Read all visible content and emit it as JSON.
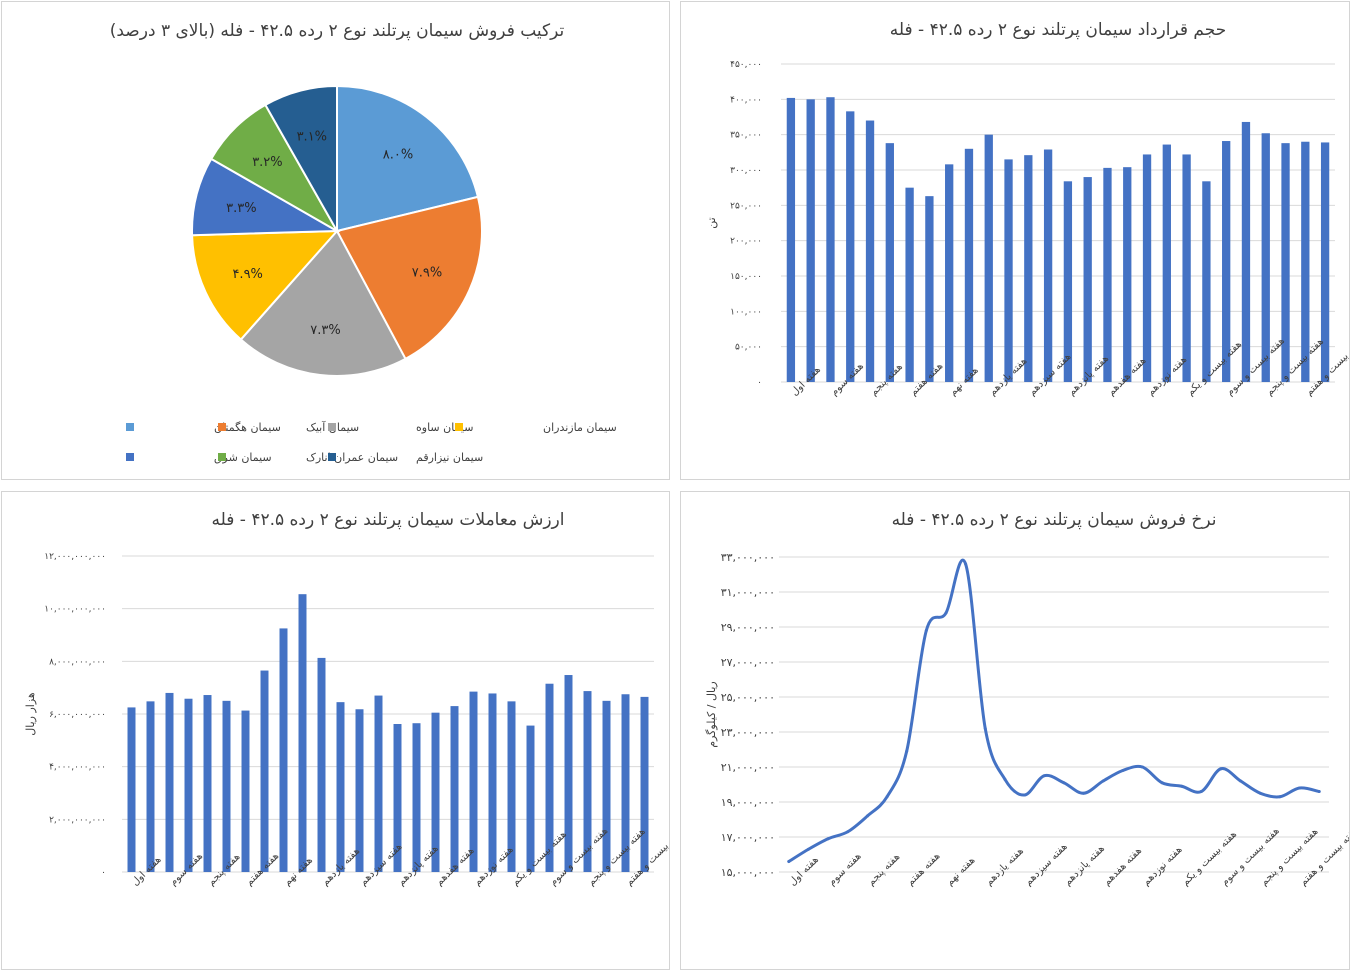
{
  "chart_data": [
    {
      "id": "pie",
      "type": "pie",
      "title": "ترکیب فروش سیمان پرتلند نوع ۲ رده ۴۲.۵ - فله (بالای ۳ درصد)",
      "slices": [
        {
          "name": "سیمان هگمتان",
          "value": 8.0,
          "label": "۸.۰%",
          "color": "#5B9BD5"
        },
        {
          "name": "سیمان آبیک",
          "value": 7.9,
          "label": "۷.۹%",
          "color": "#ED7D31"
        },
        {
          "name": "سیمان ساوه",
          "value": 7.3,
          "label": "۷.۳%",
          "color": "#A5A5A5"
        },
        {
          "name": "سیمان مازندران",
          "value": 4.9,
          "label": "۴.۹%",
          "color": "#FFC000"
        },
        {
          "name": "سیمان شرق",
          "value": 3.3,
          "label": "۳.۳%",
          "color": "#4472C4"
        },
        {
          "name": "سیمان عمران انارک",
          "value": 3.2,
          "label": "۳.۲%",
          "color": "#70AD47"
        },
        {
          "name": "سیمان نیزارقم",
          "value": 3.1,
          "label": "۳.۱%",
          "color": "#255E91"
        }
      ],
      "legend_position": "bottom"
    },
    {
      "id": "volume",
      "type": "bar",
      "title": "حجم قرارداد سیمان پرتلند نوع ۲ رده ۴۲.۵ - فله",
      "ylabel": "تن",
      "ylim": [
        0,
        450000
      ],
      "yticks": [
        0,
        50000,
        100000,
        150000,
        200000,
        250000,
        300000,
        350000,
        400000,
        450000
      ],
      "ytick_labels": [
        "۰",
        "۵۰,۰۰۰",
        "۱۰۰,۰۰۰",
        "۱۵۰,۰۰۰",
        "۲۰۰,۰۰۰",
        "۲۵۰,۰۰۰",
        "۳۰۰,۰۰۰",
        "۳۵۰,۰۰۰",
        "۴۰۰,۰۰۰",
        "۴۵۰,۰۰۰"
      ],
      "categories_shown": [
        "هفته اول",
        "هفته سوم",
        "هفته پنجم",
        "هفته هفتم",
        "هفته نهم",
        "هفته یازدهم",
        "هفته سیزدهم",
        "هفته پانزدهم",
        "هفته هفدهم",
        "هفته نوزدهم",
        "هفته بیست و یکم",
        "هفته بیست و سوم",
        "هفته بیست و پنجم",
        "هفته بیست و هفتم"
      ],
      "values": [
        402000,
        400000,
        403000,
        383000,
        370000,
        338000,
        275000,
        263000,
        308000,
        330000,
        350000,
        315000,
        321000,
        329000,
        284000,
        290000,
        303000,
        304000,
        322000,
        336000,
        322000,
        284000,
        341000,
        368000,
        352000,
        338000,
        340000,
        339000
      ],
      "color": "#4472C4"
    },
    {
      "id": "value",
      "type": "bar",
      "title": "ارزش معاملات سیمان پرتلند نوع ۲ رده ۴۲.۵ - فله",
      "ylabel": "هزار ریال",
      "ylim": [
        0,
        12000000000
      ],
      "yticks": [
        0,
        2000000000,
        4000000000,
        6000000000,
        8000000000,
        10000000000,
        12000000000
      ],
      "ytick_labels": [
        "۰",
        "۲,۰۰۰,۰۰۰,۰۰۰",
        "۴,۰۰۰,۰۰۰,۰۰۰",
        "۶,۰۰۰,۰۰۰,۰۰۰",
        "۸,۰۰۰,۰۰۰,۰۰۰",
        "۱۰,۰۰۰,۰۰۰,۰۰۰",
        "۱۲,۰۰۰,۰۰۰,۰۰۰"
      ],
      "categories_shown": [
        "هفته اول",
        "هفته سوم",
        "هفته پنجم",
        "هفته هفتم",
        "هفته نهم",
        "هفته یازدهم",
        "هفته سیزدهم",
        "هفته پانزدهم",
        "هفته هفدهم",
        "هفته نوزدهم",
        "هفته بیست و یکم",
        "هفته بیست و سوم",
        "هفته بیست و پنجم",
        "هفته بیست و هفتم"
      ],
      "values": [
        6250000000,
        6480000000,
        6800000000,
        6580000000,
        6720000000,
        6500000000,
        6130000000,
        7650000000,
        9250000000,
        10550000000,
        8130000000,
        6450000000,
        6180000000,
        6700000000,
        5620000000,
        5650000000,
        6050000000,
        6300000000,
        6850000000,
        6780000000,
        6480000000,
        5560000000,
        7150000000,
        7480000000,
        6870000000,
        6500000000,
        6750000000,
        6650000000
      ],
      "color": "#4472C4"
    },
    {
      "id": "rate",
      "type": "line",
      "title": "نرخ فروش سیمان پرتلند نوع ۲ رده ۴۲.۵ - فله",
      "ylabel": "ریال / کیلوگرم",
      "ylim": [
        15000000,
        33000000
      ],
      "yticks": [
        15000000,
        17000000,
        19000000,
        21000000,
        23000000,
        25000000,
        27000000,
        29000000,
        31000000,
        33000000
      ],
      "ytick_labels": [
        "۱۵,۰۰۰,۰۰۰",
        "۱۷,۰۰۰,۰۰۰",
        "۱۹,۰۰۰,۰۰۰",
        "۲۱,۰۰۰,۰۰۰",
        "۲۳,۰۰۰,۰۰۰",
        "۲۵,۰۰۰,۰۰۰",
        "۲۷,۰۰۰,۰۰۰",
        "۲۹,۰۰۰,۰۰۰",
        "۳۱,۰۰۰,۰۰۰",
        "۳۳,۰۰۰,۰۰۰"
      ],
      "categories_shown": [
        "هفته اول",
        "هفته سوم",
        "هفته پنجم",
        "هفته هفتم",
        "هفته نهم",
        "هفته یازدهم",
        "هفته سیزدهم",
        "هفته پانزدهم",
        "هفته هفدهم",
        "هفته نوزدهم",
        "هفته بیست و یکم",
        "هفته بیست و سوم",
        "هفته بیست و پنجم",
        "هفته بیست و هفتم"
      ],
      "values": [
        15600000,
        16300000,
        16900000,
        17300000,
        18200000,
        19300000,
        21900000,
        28800000,
        29800000,
        32600000,
        23200000,
        20300000,
        19400000,
        20500000,
        20100000,
        19500000,
        20200000,
        20800000,
        21000000,
        20100000,
        19900000,
        19600000,
        20900000,
        20200000,
        19500000,
        19300000,
        19800000,
        19600000
      ],
      "color": "#4472C4"
    }
  ]
}
